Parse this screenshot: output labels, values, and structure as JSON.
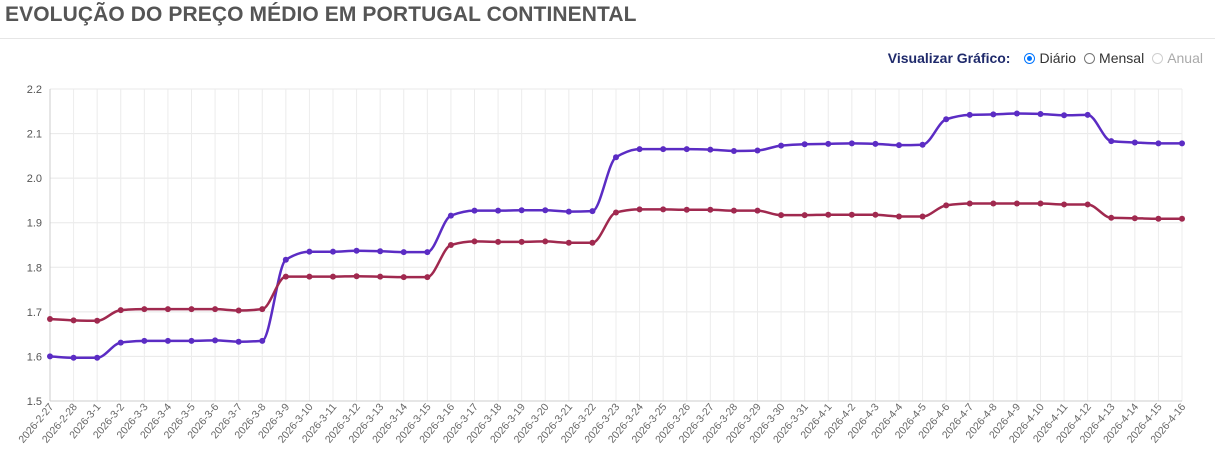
{
  "header": {
    "title": "EVOLUÇÃO DO PREÇO MÉDIO EM PORTUGAL CONTINENTAL"
  },
  "controls": {
    "label": "Visualizar Gráfico:",
    "options": [
      {
        "label": "Diário",
        "checked": true,
        "disabled": false
      },
      {
        "label": "Mensal",
        "checked": false,
        "disabled": false
      },
      {
        "label": "Anual",
        "checked": false,
        "disabled": true
      }
    ]
  },
  "chart_data": {
    "type": "line",
    "title": "",
    "xlabel": "",
    "ylabel": "",
    "ylim": [
      1.5,
      2.2
    ],
    "yticks": [
      1.5,
      1.6,
      1.7,
      1.8,
      1.9,
      2.0,
      2.1,
      2.2
    ],
    "ytick_labels": [
      "1.5",
      "1.6",
      "1.7",
      "1.8",
      "1.9",
      "2.0",
      "2.1",
      "2.2"
    ],
    "grid": true,
    "x": [
      "2026-2-27",
      "2026-2-28",
      "2026-3-1",
      "2026-3-2",
      "2026-3-3",
      "2026-3-4",
      "2026-3-5",
      "2026-3-6",
      "2026-3-7",
      "2026-3-8",
      "2026-3-9",
      "2026-3-10",
      "2026-3-11",
      "2026-3-12",
      "2026-3-13",
      "2026-3-14",
      "2026-3-15",
      "2026-3-16",
      "2026-3-17",
      "2026-3-18",
      "2026-3-19",
      "2026-3-20",
      "2026-3-21",
      "2026-3-22",
      "2026-3-23",
      "2026-3-24",
      "2026-3-25",
      "2026-3-26",
      "2026-3-27",
      "2026-3-28",
      "2026-3-29",
      "2026-3-30",
      "2026-3-31",
      "2026-4-1",
      "2026-4-2",
      "2026-4-3",
      "2026-4-4",
      "2026-4-5",
      "2026-4-6",
      "2026-4-7",
      "2026-4-8",
      "2026-4-9",
      "2026-4-10",
      "2026-4-11",
      "2026-4-12",
      "2026-4-13",
      "2026-4-14",
      "2026-4-15",
      "2026-4-16"
    ],
    "series": [
      {
        "color": "#5b2cc4",
        "values": [
          1.6,
          1.597,
          1.597,
          1.631,
          1.635,
          1.635,
          1.635,
          1.636,
          1.633,
          1.635,
          1.817,
          1.835,
          1.835,
          1.837,
          1.836,
          1.834,
          1.834,
          1.916,
          1.927,
          1.927,
          1.928,
          1.928,
          1.925,
          1.926,
          2.047,
          2.065,
          2.065,
          2.065,
          2.064,
          2.061,
          2.062,
          2.073,
          2.076,
          2.077,
          2.078,
          2.077,
          2.074,
          2.075,
          2.132,
          2.142,
          2.143,
          2.145,
          2.144,
          2.141,
          2.142,
          2.083,
          2.08,
          2.078,
          2.078
        ]
      },
      {
        "color": "#a0294f",
        "values": [
          1.684,
          1.681,
          1.68,
          1.704,
          1.706,
          1.706,
          1.706,
          1.706,
          1.703,
          1.706,
          1.779,
          1.779,
          1.779,
          1.78,
          1.779,
          1.778,
          1.778,
          1.85,
          1.858,
          1.857,
          1.857,
          1.858,
          1.855,
          1.855,
          1.923,
          1.93,
          1.93,
          1.929,
          1.929,
          1.927,
          1.927,
          1.917,
          1.917,
          1.918,
          1.918,
          1.918,
          1.914,
          1.914,
          1.939,
          1.943,
          1.943,
          1.943,
          1.943,
          1.941,
          1.941,
          1.911,
          1.91,
          1.909,
          1.909
        ]
      }
    ]
  }
}
